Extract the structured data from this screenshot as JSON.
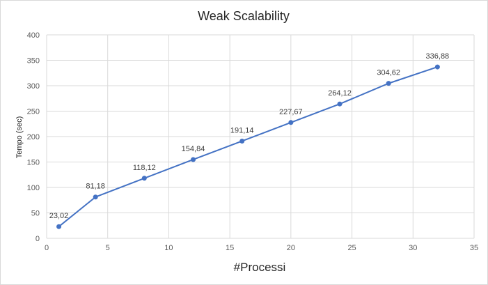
{
  "chart_data": {
    "type": "line",
    "title": "Weak Scalability",
    "xlabel": "#Processi",
    "ylabel": "Tempo (sec)",
    "x": [
      1,
      4,
      8,
      12,
      16,
      20,
      24,
      28,
      32
    ],
    "series": [
      {
        "values": [
          23.02,
          81.18,
          118.12,
          154.84,
          191.14,
          227.67,
          264.12,
          304.62,
          336.88
        ],
        "labels": [
          "23,02",
          "81,18",
          "118,12",
          "154,84",
          "191,14",
          "227,67",
          "264,12",
          "304,62",
          "336,88"
        ],
        "color": "#4472c4"
      }
    ],
    "xlim": [
      0,
      35
    ],
    "ylim": [
      0,
      400
    ],
    "xticks": [
      0,
      5,
      10,
      15,
      20,
      25,
      30,
      35
    ],
    "yticks": [
      0,
      50,
      100,
      150,
      200,
      250,
      300,
      350,
      400
    ],
    "grid": true,
    "legend": "none"
  }
}
